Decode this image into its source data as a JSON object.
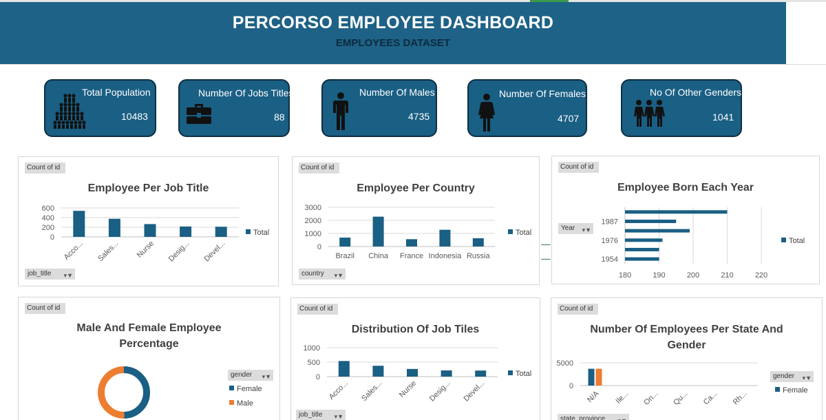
{
  "header": {
    "title": "PERCORSO EMPLOYEE DASHBOARD",
    "subtitle": "EMPLOYEES DATASET"
  },
  "kpis": [
    {
      "label": "Total Population",
      "value": "10483",
      "icon": "people-pyramid-icon"
    },
    {
      "label": "Number Of Jobs Titles",
      "value": "88",
      "icon": "briefcase-icon"
    },
    {
      "label": "Number Of Males",
      "value": "4735",
      "icon": "male-person-icon"
    },
    {
      "label": "Number Of Females",
      "value": "4707",
      "icon": "female-person-icon"
    },
    {
      "label": "No Of Other Genders",
      "value": "1041",
      "icon": "group-icon"
    }
  ],
  "common": {
    "count_label": "Count of id",
    "total_label": "Total",
    "accent": "#1a5f84",
    "orange": "#ed7d31"
  },
  "panels": {
    "job_title": {
      "title": "Employee Per Job Title",
      "filter": "job_title"
    },
    "country": {
      "title": "Employee Per Country",
      "filter": "country"
    },
    "born": {
      "title": "Employee Born Each Year",
      "filter": "Year"
    },
    "gender": {
      "title_line1": "Male And Female Employee",
      "title_line2": "Percentage",
      "filter": "gender",
      "legend": [
        "Female",
        "Male"
      ]
    },
    "dist": {
      "title": "Distribution Of Job Tiles",
      "filter": "job_title"
    },
    "state": {
      "title_line1": "Number Of Employees Per State And",
      "title_line2": "Gender",
      "filter": "gender",
      "filter2": "state_province",
      "legend": "Female"
    }
  },
  "chart_data": [
    {
      "id": "job_title",
      "type": "bar",
      "title": "Employee Per Job Title",
      "categories": [
        "Acco...",
        "Sales...",
        "Nurse",
        "Desig...",
        "Devel..."
      ],
      "values": [
        540,
        375,
        265,
        215,
        210
      ],
      "ylim": [
        0,
        600
      ],
      "yticks": [
        0,
        200,
        400,
        600
      ],
      "legend": "Total"
    },
    {
      "id": "country",
      "type": "bar",
      "title": "Employee Per Country",
      "categories": [
        "Brazil",
        "China",
        "France",
        "Indonesia",
        "Russia"
      ],
      "values": [
        680,
        2280,
        560,
        1280,
        630
      ],
      "ylim": [
        0,
        3000
      ],
      "yticks": [
        0,
        1000,
        2000,
        3000
      ],
      "legend": "Total"
    },
    {
      "id": "born",
      "type": "bar",
      "orientation": "horizontal",
      "title": "Employee Born Each Year",
      "categories": [
        "1954",
        "",
        "1976",
        "",
        "1987",
        ""
      ],
      "values": [
        190,
        190,
        191,
        199,
        195,
        210
      ],
      "xlim": [
        180,
        220
      ],
      "xticks": [
        180,
        190,
        200,
        210,
        220
      ],
      "legend": "Total"
    },
    {
      "id": "gender",
      "type": "pie",
      "title": "Male And Female Employee Percentage",
      "categories": [
        "Female",
        "Male"
      ],
      "values": [
        4707,
        4735
      ]
    },
    {
      "id": "dist",
      "type": "bar",
      "title": "Distribution Of Job Tiles",
      "categories": [
        "Acco...",
        "Sales...",
        "Nurse",
        "Desig...",
        "Devel..."
      ],
      "values": [
        540,
        375,
        265,
        215,
        210
      ],
      "ylim": [
        0,
        1000
      ],
      "yticks": [
        0,
        500,
        1000
      ],
      "legend": "Total"
    },
    {
      "id": "state",
      "type": "bar",
      "title": "Number Of Employees Per State And Gender",
      "categories": [
        "N/A",
        "Ile...",
        "On...",
        "Qu...",
        "Ca...",
        "Rh..."
      ],
      "series": [
        {
          "name": "Female",
          "values": [
            3700,
            0,
            0,
            0,
            0,
            0
          ]
        },
        {
          "name": "Male",
          "values": [
            3700,
            0,
            0,
            0,
            0,
            0
          ]
        }
      ],
      "ylim": [
        0,
        5000
      ],
      "yticks": [
        0,
        5000
      ],
      "legend": "Female"
    }
  ]
}
